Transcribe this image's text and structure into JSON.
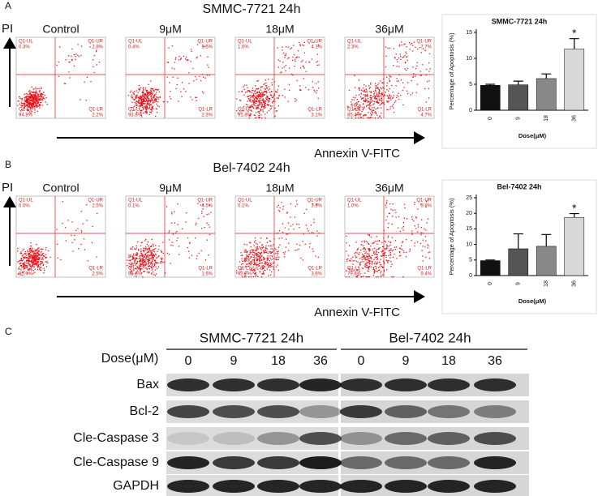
{
  "panels": [
    {
      "label": "A",
      "title": "SMMC-7721 24h",
      "y_axis_label": "PI",
      "x_axis_label": "Annexin V-FITC",
      "plots": [
        {
          "title": "Control",
          "percents": [
            "0.3%",
            "2.8%",
            "94.8%",
            "2.2%"
          ]
        },
        {
          "title": "9μM",
          "percents": [
            "0.4%",
            "3.5%",
            "93.8%",
            "2.3%"
          ]
        },
        {
          "title": "18μM",
          "percents": [
            "1.0%",
            "4.1%",
            "91.8%",
            "3.1%"
          ]
        },
        {
          "title": "36μM",
          "percents": [
            "2.3%",
            "7.7%",
            "85.4%",
            "4.7%"
          ]
        }
      ]
    },
    {
      "label": "B",
      "title": "Bel-7402 24h",
      "y_axis_label": "PI",
      "x_axis_label": "Annexin V-FITC",
      "plots": [
        {
          "title": "Control",
          "percents": [
            "0.0%",
            "2.5%",
            "95.0%",
            "2.5%"
          ]
        },
        {
          "title": "9μM",
          "percents": [
            "0.1%",
            "4.5%",
            "93.8%",
            "1.6%"
          ]
        },
        {
          "title": "18μM",
          "percents": [
            "0.1%",
            "3.8%",
            "92.5%",
            "3.6%"
          ]
        },
        {
          "title": "36μM",
          "percents": [
            "1.0%",
            "9.8%",
            "79.8%",
            "9.4%"
          ]
        }
      ]
    }
  ],
  "quadrant_labels": [
    "Q1-UL",
    "Q1-UR",
    "Q1-LL",
    "Q1-LR"
  ],
  "chart_data": [
    {
      "type": "bar",
      "title": "SMMC-7721 24h",
      "y_label": "Percentage of Apoptosis (%)",
      "x_label": "Dose(μM)",
      "categories": [
        "0",
        "9",
        "18",
        "36"
      ],
      "values": [
        4.8,
        4.9,
        6.1,
        11.8
      ],
      "errors": [
        0.2,
        0.7,
        0.9,
        2.0
      ],
      "colors": [
        "#111111",
        "#555555",
        "#888888",
        "#d8d8d8"
      ],
      "ylim": [
        0,
        15
      ],
      "yticks": [
        0,
        5,
        10,
        15
      ],
      "significance_mark": "*"
    },
    {
      "type": "bar",
      "title": "Bel-7402 24h",
      "y_label": "Percentage of Apoptosis (%)",
      "x_label": "Dose(μM)",
      "categories": [
        "0",
        "9",
        "18",
        "36"
      ],
      "values": [
        4.8,
        8.6,
        9.4,
        18.7
      ],
      "errors": [
        0.2,
        4.8,
        3.8,
        1.2
      ],
      "colors": [
        "#111111",
        "#555555",
        "#888888",
        "#d8d8d8"
      ],
      "ylim": [
        0,
        25
      ],
      "yticks": [
        0,
        5,
        10,
        15,
        20,
        25
      ],
      "significance_mark": "*"
    }
  ],
  "blot": {
    "label": "C",
    "groups": [
      "SMMC-7721 24h",
      "Bel-7402 24h"
    ],
    "dose_label": "Dose(μM)",
    "doses": [
      "0",
      "9",
      "18",
      "36",
      "0",
      "9",
      "18",
      "36"
    ],
    "rows": [
      "Bax",
      "Bcl-2",
      "Cle-Caspase 3",
      "Cle-Caspase 9",
      "GAPDH"
    ]
  }
}
